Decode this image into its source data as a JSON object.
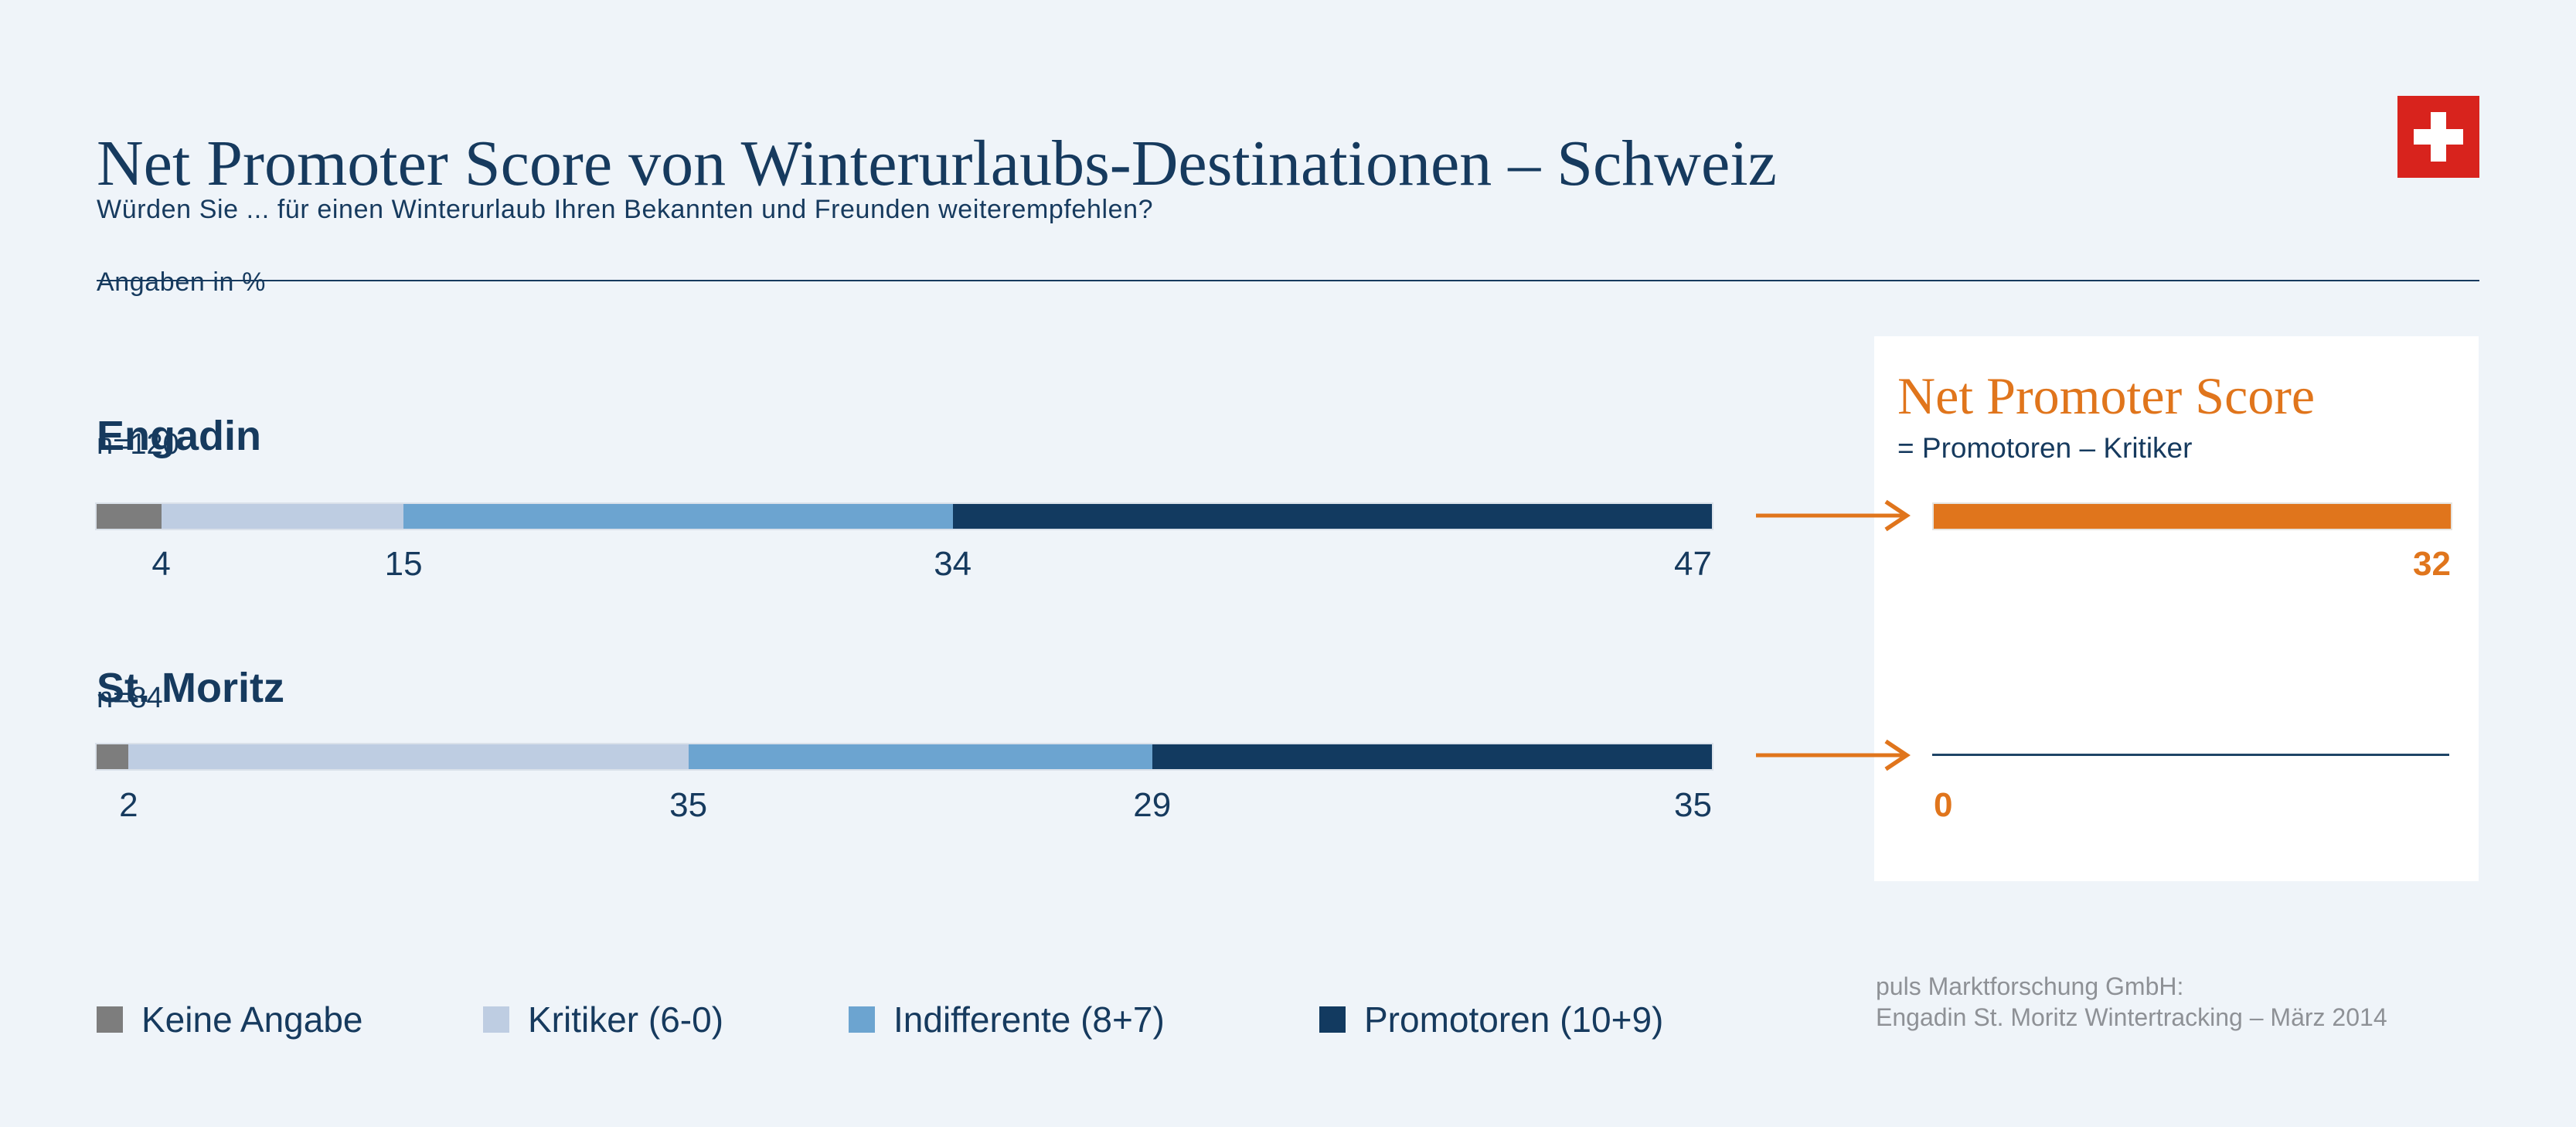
{
  "page": {
    "background": "#EFF4F9",
    "accent_orange": "#E0751C",
    "navy": "#163A5E"
  },
  "header": {
    "title": "Net Promoter Score von Winterurlaubs-Destinationen – Schweiz",
    "question": "Würden Sie ... für einen Winterurlaub Ihren Bekannten und Freunden weiterempfehlen?",
    "unit_note": "Angaben in %",
    "flag_color": "#D8231D"
  },
  "nps_panel": {
    "title": "Net Promoter Score",
    "formula": "= Promotoren – Kritiker",
    "zero_line_color": "#1E4466"
  },
  "legend": [
    {
      "label": "Keine Angabe",
      "color": "#7D7D7D"
    },
    {
      "label": "Kritiker (6-0)",
      "color": "#BECDE2"
    },
    {
      "label": "Indifferente (8+7)",
      "color": "#6CA4D0"
    },
    {
      "label": "Promotoren (10+9)",
      "color": "#123A60"
    }
  ],
  "source": {
    "line1": "puls Marktforschung GmbH:",
    "line2": "Engadin St. Moritz Wintertracking – März 2014"
  },
  "chart_data": {
    "type": "bar",
    "stacked": true,
    "orientation": "horizontal",
    "unit": "%",
    "title": "Net Promoter Score von Winterurlaubs-Destinationen – Schweiz",
    "categories": [
      "Keine Angabe",
      "Kritiker (6-0)",
      "Indifferente (8+7)",
      "Promotoren (10+9)"
    ],
    "colors": [
      "#7D7D7D",
      "#BECDE2",
      "#6CA4D0",
      "#123A60"
    ],
    "nps_color": "#E0751C",
    "rows": [
      {
        "destination": "Engadin",
        "n_label": "n=120",
        "values": [
          4,
          15,
          34,
          47
        ],
        "nps": 32
      },
      {
        "destination": "St. Moritz",
        "n_label": "n=84",
        "values": [
          2,
          35,
          29,
          35
        ],
        "nps": 0
      }
    ]
  }
}
